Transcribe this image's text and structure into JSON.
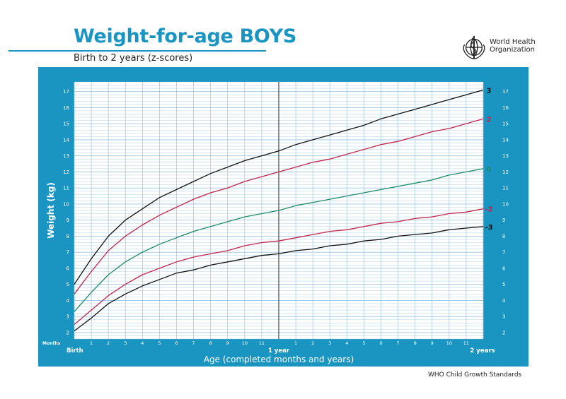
{
  "header": {
    "title": "Weight-for-age BOYS",
    "subtitle": "Birth to 2 years (z-scores)",
    "org_name": "World Health Organization",
    "logo_icon": "who-emblem-icon"
  },
  "footer": {
    "text": "WHO Child Growth Standards"
  },
  "colors": {
    "frame": "#1a95c2",
    "plot_bg": "#ffffff",
    "grid": "#9ec3dd",
    "z3": "#111111",
    "z2": "#c0264a",
    "z0": "#1f8a6b",
    "zm2": "#c0264a",
    "zm3": "#111111"
  },
  "chart_data": {
    "type": "line",
    "title": "Weight-for-age BOYS",
    "subtitle": "Birth to 2 years (z-scores)",
    "xlabel": "Age (completed months and years)",
    "ylabel": "Weight (kg)",
    "x_axis_caption": "Months",
    "x_unit": "months",
    "xlim": [
      0,
      24
    ],
    "ylim": [
      1.6,
      17.6
    ],
    "y_ticks": [
      2,
      3,
      4,
      5,
      6,
      7,
      8,
      9,
      10,
      11,
      12,
      13,
      14,
      15,
      16,
      17
    ],
    "x_ticks": [
      {
        "x": 0,
        "label": "Birth",
        "bold": true
      },
      {
        "x": 1,
        "label": "1"
      },
      {
        "x": 2,
        "label": "2"
      },
      {
        "x": 3,
        "label": "3"
      },
      {
        "x": 4,
        "label": "4"
      },
      {
        "x": 5,
        "label": "5"
      },
      {
        "x": 6,
        "label": "6"
      },
      {
        "x": 7,
        "label": "7"
      },
      {
        "x": 8,
        "label": "8"
      },
      {
        "x": 9,
        "label": "9"
      },
      {
        "x": 10,
        "label": "10"
      },
      {
        "x": 11,
        "label": "11"
      },
      {
        "x": 12,
        "label": "1 year",
        "bold": true
      },
      {
        "x": 13,
        "label": "1"
      },
      {
        "x": 14,
        "label": "2"
      },
      {
        "x": 15,
        "label": "3"
      },
      {
        "x": 16,
        "label": "4"
      },
      {
        "x": 17,
        "label": "5"
      },
      {
        "x": 18,
        "label": "6"
      },
      {
        "x": 19,
        "label": "7"
      },
      {
        "x": 20,
        "label": "8"
      },
      {
        "x": 21,
        "label": "9"
      },
      {
        "x": 22,
        "label": "10"
      },
      {
        "x": 23,
        "label": "11"
      },
      {
        "x": 24,
        "label": "2 years",
        "bold": true
      }
    ],
    "grid": true,
    "year_divider": 12,
    "x": [
      0,
      1,
      2,
      3,
      4,
      5,
      6,
      7,
      8,
      9,
      10,
      11,
      12,
      13,
      14,
      15,
      16,
      17,
      18,
      19,
      20,
      21,
      22,
      23,
      24
    ],
    "series": [
      {
        "name": "3",
        "color_key": "z3",
        "values": [
          5.0,
          6.6,
          8.0,
          9.0,
          9.7,
          10.4,
          10.9,
          11.4,
          11.9,
          12.3,
          12.7,
          13.0,
          13.3,
          13.7,
          14.0,
          14.3,
          14.6,
          14.9,
          15.3,
          15.6,
          15.9,
          16.2,
          16.5,
          16.8,
          17.1
        ]
      },
      {
        "name": "2",
        "color_key": "z2",
        "values": [
          4.4,
          5.8,
          7.1,
          8.0,
          8.7,
          9.3,
          9.8,
          10.3,
          10.7,
          11.0,
          11.4,
          11.7,
          12.0,
          12.3,
          12.6,
          12.8,
          13.1,
          13.4,
          13.7,
          13.9,
          14.2,
          14.5,
          14.7,
          15.0,
          15.3
        ]
      },
      {
        "name": "0",
        "color_key": "z0",
        "values": [
          3.3,
          4.5,
          5.6,
          6.4,
          7.0,
          7.5,
          7.9,
          8.3,
          8.6,
          8.9,
          9.2,
          9.4,
          9.6,
          9.9,
          10.1,
          10.3,
          10.5,
          10.7,
          10.9,
          11.1,
          11.3,
          11.5,
          11.8,
          12.0,
          12.2
        ]
      },
      {
        "name": "-2",
        "color_key": "zm2",
        "values": [
          2.5,
          3.4,
          4.3,
          5.0,
          5.6,
          6.0,
          6.4,
          6.7,
          6.9,
          7.1,
          7.4,
          7.6,
          7.7,
          7.9,
          8.1,
          8.3,
          8.4,
          8.6,
          8.8,
          8.9,
          9.1,
          9.2,
          9.4,
          9.5,
          9.7
        ]
      },
      {
        "name": "-3",
        "color_key": "zm3",
        "values": [
          2.1,
          2.9,
          3.8,
          4.4,
          4.9,
          5.3,
          5.7,
          5.9,
          6.2,
          6.4,
          6.6,
          6.8,
          6.9,
          7.1,
          7.2,
          7.4,
          7.5,
          7.7,
          7.8,
          8.0,
          8.1,
          8.2,
          8.4,
          8.5,
          8.6
        ]
      }
    ]
  }
}
